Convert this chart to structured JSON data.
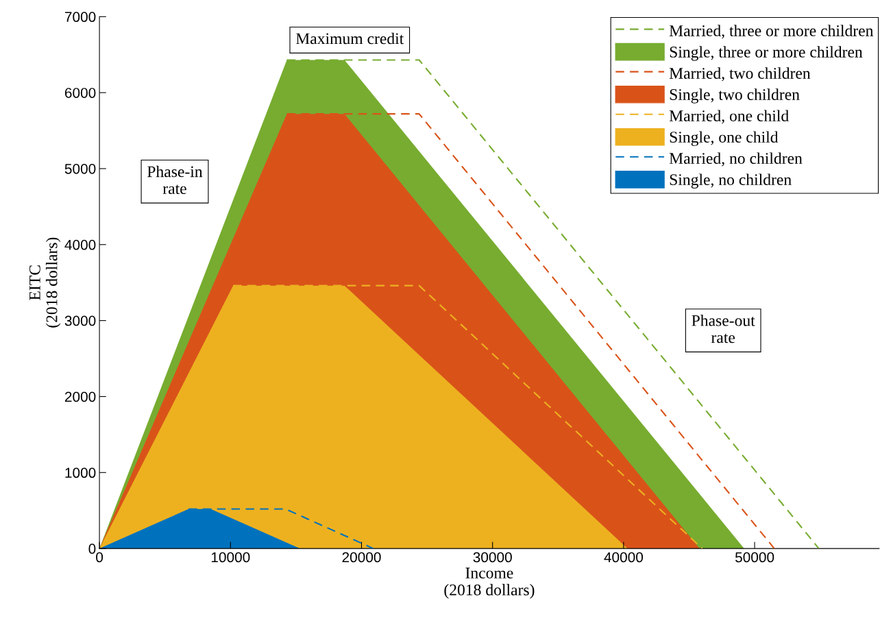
{
  "chart_data": {
    "type": "area",
    "xlabel": "Income\n(2018 dollars)",
    "ylabel": "EITC\n(2018 dollars)",
    "xlim": [
      0,
      59500
    ],
    "xticks": [
      0,
      10000,
      20000,
      30000,
      40000,
      50000
    ],
    "ylim": [
      0,
      7000
    ],
    "yticks": [
      0,
      1000,
      2000,
      3000,
      4000,
      5000,
      6000,
      7000
    ],
    "grid": false,
    "legend": "top right",
    "annotations": [
      "Maximum credit",
      "Phase-in\nrate",
      "Phase-out\nrate"
    ],
    "series": [
      {
        "name": "Married, three or more children",
        "type": "line",
        "line_style": "dashed",
        "color": "#77ac30",
        "x": [
          14300,
          24400,
          54900
        ],
        "values": [
          6430,
          6430,
          0
        ]
      },
      {
        "name": "Single, three or more children",
        "color": "#77ac30",
        "x": [
          0,
          14300,
          18700,
          49200
        ],
        "values": [
          0,
          6430,
          6430,
          0
        ]
      },
      {
        "name": "Married, two children",
        "type": "line",
        "line_style": "dashed",
        "color": "#d95319",
        "x": [
          14300,
          24400,
          51500
        ],
        "values": [
          5720,
          5720,
          0
        ]
      },
      {
        "name": "Single, two children",
        "color": "#d95319",
        "x": [
          0,
          14300,
          18700,
          45800
        ],
        "values": [
          0,
          5720,
          5720,
          0
        ]
      },
      {
        "name": "Married, one child",
        "type": "line",
        "line_style": "dashed",
        "color": "#edb120",
        "x": [
          10200,
          24400,
          46000
        ],
        "values": [
          3460,
          3460,
          0
        ]
      },
      {
        "name": "Single, one child",
        "color": "#edb120",
        "x": [
          0,
          10200,
          18700,
          40300
        ],
        "values": [
          0,
          3460,
          3460,
          0
        ]
      },
      {
        "name": "Married, no children",
        "type": "line",
        "line_style": "dashed",
        "color": "#0072bd",
        "x": [
          6800,
          14200,
          20900
        ],
        "values": [
          520,
          520,
          0
        ]
      },
      {
        "name": "Single, no children",
        "color": "#0072bd",
        "x": [
          0,
          6800,
          8500,
          15300
        ],
        "values": [
          0,
          520,
          520,
          0
        ]
      }
    ]
  }
}
